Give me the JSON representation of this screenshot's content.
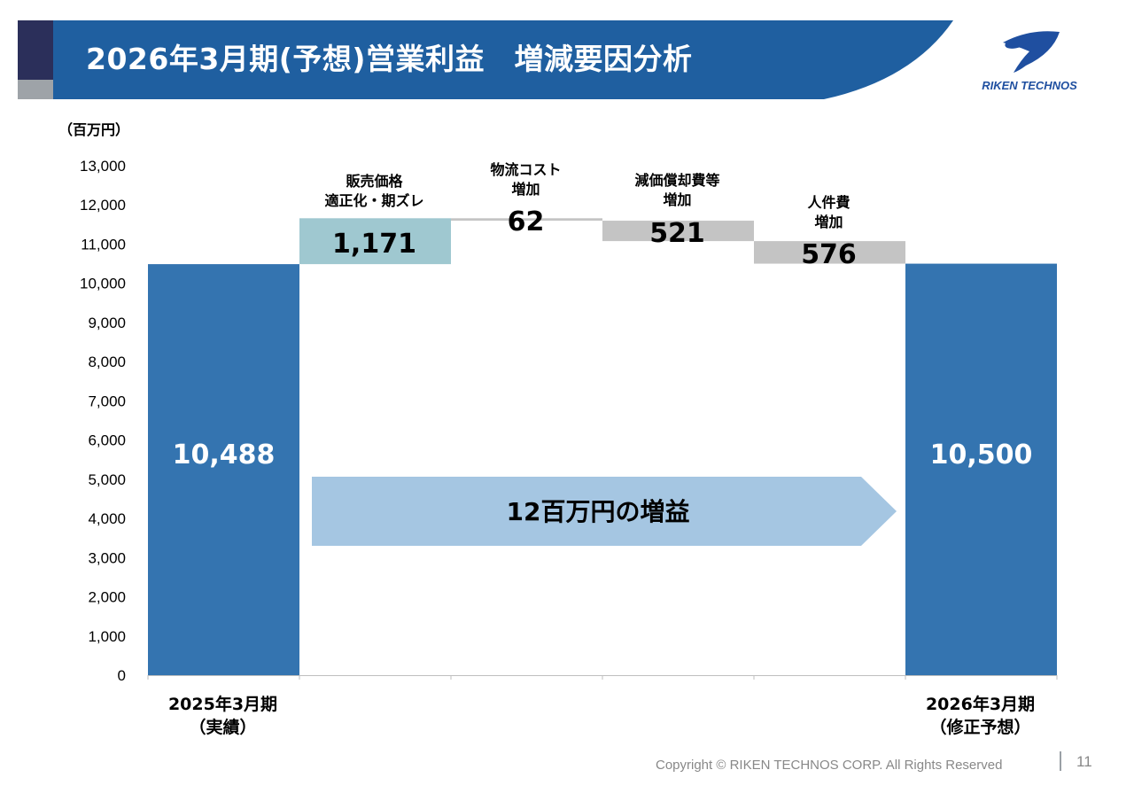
{
  "header": {
    "title": "2026年3月期(予想)営業利益　増減要因分析",
    "logo_text": "RIKEN TECHNOS"
  },
  "unit_label": "（百万円）",
  "colors": {
    "header_bg": "#1f5fa0",
    "header_accent": "#2b2f5a",
    "total_bar": "#3474b0",
    "increase_bar": "#9fc8d0",
    "decrease_bar": "#c4c4c4",
    "arrow": "#a5c6e2"
  },
  "chart_data": {
    "type": "waterfall",
    "ylim": [
      0,
      13000
    ],
    "yticks": [
      "0",
      "1,000",
      "2,000",
      "3,000",
      "4,000",
      "5,000",
      "6,000",
      "7,000",
      "8,000",
      "9,000",
      "10,000",
      "11,000",
      "12,000",
      "13,000"
    ],
    "bars": [
      {
        "key": "start",
        "kind": "total",
        "label_lines": [
          "2025年3月期",
          "（実績）"
        ],
        "value": 10488,
        "value_label": "10,488"
      },
      {
        "key": "price",
        "kind": "increase",
        "label_lines": [
          "販売価格",
          "適正化・期ズレ"
        ],
        "value": 1171,
        "value_label": "1,171"
      },
      {
        "key": "logistics",
        "kind": "decrease",
        "label_lines": [
          "物流コスト",
          "増加"
        ],
        "value": 62,
        "value_label": "62"
      },
      {
        "key": "depreciation",
        "kind": "decrease",
        "label_lines": [
          "減価償却費等",
          "増加"
        ],
        "value": 521,
        "value_label": "521"
      },
      {
        "key": "personnel",
        "kind": "decrease",
        "label_lines": [
          "人件費",
          "増加"
        ],
        "value": 576,
        "value_label": "576"
      },
      {
        "key": "end",
        "kind": "total",
        "label_lines": [
          "2026年3月期",
          "（修正予想）"
        ],
        "value": 10500,
        "value_label": "10,500"
      }
    ],
    "annotation": "12百万円の増益"
  },
  "footer": {
    "copyright": "Copyright © RIKEN TECHNOS CORP. All Rights Reserved",
    "page": "11"
  }
}
